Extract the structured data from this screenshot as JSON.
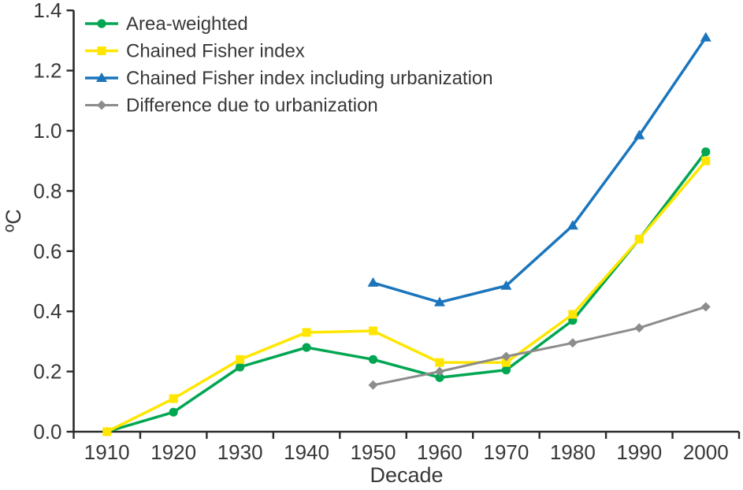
{
  "chart_data": {
    "type": "line",
    "title": "",
    "xlabel": "Decade",
    "ylabel": "ºC",
    "xlim": [
      1905,
      2005
    ],
    "ylim": [
      0.0,
      1.4
    ],
    "grid": false,
    "legend_position": "top-left",
    "x": [
      1910,
      1920,
      1930,
      1940,
      1950,
      1960,
      1970,
      1980,
      1990,
      2000
    ],
    "x_tick_marks": [
      1905,
      1915,
      1925,
      1935,
      1945,
      1955,
      1965,
      1975,
      1985,
      1995,
      2005
    ],
    "x_tick_labels": [
      "1910",
      "1920",
      "1930",
      "1940",
      "1950",
      "1960",
      "1970",
      "1980",
      "1990",
      "2000"
    ],
    "y_tick_labels": [
      "0.0",
      "0.2",
      "0.4",
      "0.6",
      "0.8",
      "1.0",
      "1.2",
      "1.4"
    ],
    "y_tick_values": [
      0.0,
      0.2,
      0.4,
      0.6,
      0.8,
      1.0,
      1.2,
      1.4
    ],
    "axis_color": "#2b2b2b",
    "series": [
      {
        "name": "Area-weighted",
        "color": "#00A651",
        "marker": "circle",
        "line_width": 3.5,
        "values": [
          0.0,
          0.065,
          0.215,
          0.28,
          0.24,
          0.18,
          0.205,
          0.37,
          0.64,
          0.93
        ]
      },
      {
        "name": "Chained Fisher index",
        "color": "#FFE600",
        "marker": "square",
        "line_width": 3.5,
        "values": [
          0.0,
          0.11,
          0.24,
          0.33,
          0.335,
          0.23,
          0.23,
          0.39,
          0.64,
          0.9
        ]
      },
      {
        "name": "Chained Fisher index including urbanization",
        "color": "#1B75BC",
        "marker": "triangle",
        "line_width": 3.5,
        "values": [
          null,
          null,
          null,
          null,
          0.495,
          0.43,
          0.485,
          0.685,
          0.985,
          1.31
        ]
      },
      {
        "name": "Difference due to urbanization",
        "color": "#8C8C8C",
        "marker": "diamond",
        "line_width": 3.0,
        "values": [
          null,
          null,
          null,
          null,
          0.155,
          0.2,
          0.25,
          0.295,
          0.345,
          0.415
        ]
      }
    ]
  }
}
